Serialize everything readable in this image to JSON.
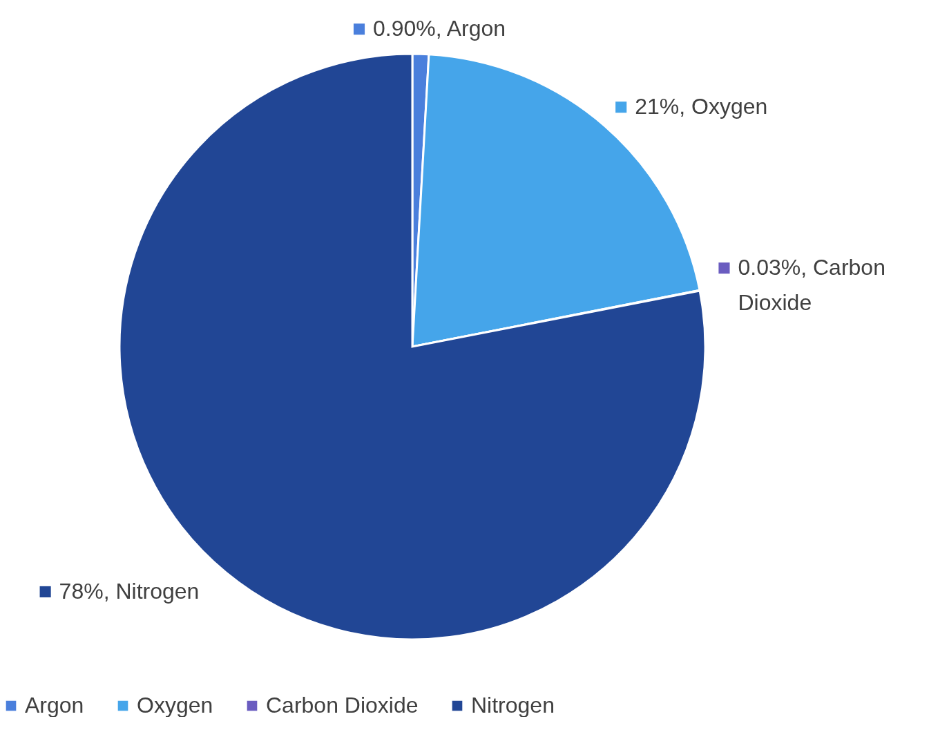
{
  "chart_data": {
    "type": "pie",
    "categories": [
      "Argon",
      "Oxygen",
      "Carbon Dioxide",
      "Nitrogen"
    ],
    "values": [
      0.9,
      21,
      0.03,
      78
    ],
    "colors": [
      "#4a7fdc",
      "#45a5ea",
      "#6a5cc0",
      "#214695"
    ],
    "value_labels": [
      "0.90%, Argon",
      "21%, Oxygen",
      "0.03%, Carbon Dioxide",
      "78%, Nitrogen"
    ],
    "legend": "bottom"
  }
}
